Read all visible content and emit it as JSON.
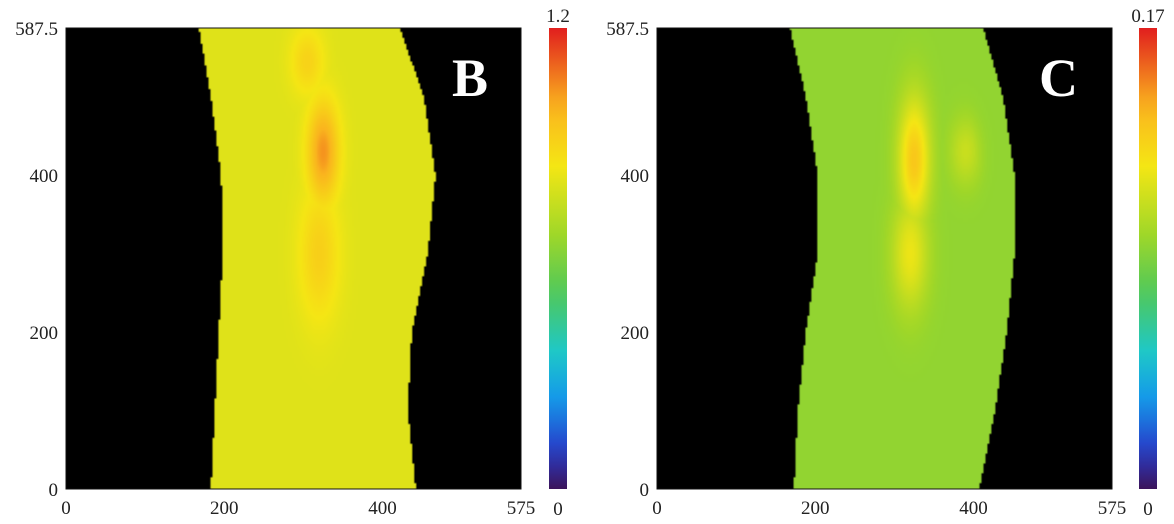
{
  "chart_data": [
    {
      "type": "heatmap",
      "panel_label": "B",
      "x_ticks": [
        "0",
        "200",
        "400",
        "575"
      ],
      "y_ticks": [
        "0",
        "200",
        "400",
        "587.5"
      ],
      "xlim": [
        0,
        575
      ],
      "ylim": [
        0,
        587.5
      ],
      "colorbar": {
        "min": 0,
        "max": 1.2,
        "min_label": "0",
        "max_label": "1.2"
      },
      "band": {
        "description_values": "channel edges and centerline in data units",
        "y": [
          0,
          100,
          200,
          300,
          400,
          500,
          587.5
        ],
        "left_edge": [
          195,
          200,
          205,
          210,
          208,
          195,
          180
        ],
        "right_edge": [
          430,
          420,
          425,
          445,
          455,
          440,
          410
        ],
        "level": 0.82
      },
      "hotspots": [
        {
          "x": 325,
          "y": 430,
          "level": 1.05,
          "sx": 14,
          "sy": 45
        },
        {
          "x": 320,
          "y": 300,
          "level": 0.93,
          "sx": 18,
          "sy": 60
        },
        {
          "x": 305,
          "y": 545,
          "level": 0.92,
          "sx": 15,
          "sy": 30
        }
      ]
    },
    {
      "type": "heatmap",
      "panel_label": "C",
      "x_ticks": [
        "0",
        "200",
        "400",
        "575"
      ],
      "y_ticks": [
        "0",
        "200",
        "400",
        "587.5"
      ],
      "xlim": [
        0,
        575
      ],
      "ylim": [
        0,
        587.5
      ],
      "colorbar": {
        "min": 0,
        "max": 0.17,
        "min_label": "0",
        "max_label": "0.17"
      },
      "band": {
        "y": [
          0,
          100,
          200,
          300,
          400,
          500,
          587.5
        ],
        "left_edge": [
          185,
          190,
          200,
          215,
          215,
          200,
          180
        ],
        "right_edge": [
          395,
          415,
          430,
          440,
          440,
          425,
          400
        ],
        "level": 0.095
      },
      "hotspots": [
        {
          "x": 325,
          "y": 420,
          "level": 0.135,
          "sx": 14,
          "sy": 55
        },
        {
          "x": 320,
          "y": 300,
          "level": 0.12,
          "sx": 16,
          "sy": 50
        },
        {
          "x": 390,
          "y": 430,
          "level": 0.11,
          "sx": 14,
          "sy": 30
        }
      ]
    }
  ]
}
